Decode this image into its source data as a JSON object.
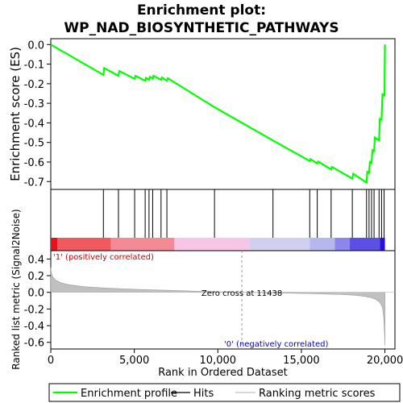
{
  "chart_data": {
    "type": "line",
    "title": "Enrichment plot:\nWP_NAD_BIOSYNTHETIC_PATHWAYS",
    "es_panel": {
      "ylabel": "Enrichment score (ES)",
      "ylim": [
        -0.74,
        0.03
      ],
      "yticks": [
        0.0,
        -0.1,
        -0.2,
        -0.3,
        -0.4,
        -0.5,
        -0.6,
        -0.7
      ],
      "ytick_labels": [
        "0.0",
        "-0.1",
        "-0.2",
        "-0.3",
        "-0.4",
        "-0.5",
        "-0.6",
        "-0.7"
      ],
      "curve_color": "#00ff00",
      "points": [
        [
          0,
          0.0
        ],
        [
          3150,
          -0.155
        ],
        [
          3200,
          -0.12
        ],
        [
          4050,
          -0.16
        ],
        [
          4100,
          -0.135
        ],
        [
          5020,
          -0.175
        ],
        [
          5070,
          -0.16
        ],
        [
          5650,
          -0.185
        ],
        [
          5700,
          -0.17
        ],
        [
          5880,
          -0.18
        ],
        [
          5930,
          -0.165
        ],
        [
          6100,
          -0.175
        ],
        [
          6150,
          -0.16
        ],
        [
          6600,
          -0.18
        ],
        [
          6650,
          -0.168
        ],
        [
          6950,
          -0.185
        ],
        [
          7000,
          -0.172
        ],
        [
          9800,
          -0.32
        ],
        [
          13300,
          -0.49
        ],
        [
          15500,
          -0.595
        ],
        [
          15550,
          -0.585
        ],
        [
          15950,
          -0.608
        ],
        [
          16000,
          -0.598
        ],
        [
          16780,
          -0.638
        ],
        [
          16830,
          -0.625
        ],
        [
          18050,
          -0.685
        ],
        [
          18100,
          -0.66
        ],
        [
          18900,
          -0.705
        ],
        [
          18950,
          -0.65
        ],
        [
          19050,
          -0.655
        ],
        [
          19100,
          -0.6
        ],
        [
          19200,
          -0.605
        ],
        [
          19250,
          -0.54
        ],
        [
          19350,
          -0.545
        ],
        [
          19400,
          -0.475
        ],
        [
          19650,
          -0.49
        ],
        [
          19700,
          -0.38
        ],
        [
          19800,
          -0.385
        ],
        [
          19850,
          -0.255
        ],
        [
          19980,
          -0.26
        ],
        [
          20000,
          0.0
        ]
      ]
    },
    "hits": [
      3150,
      4050,
      5020,
      5650,
      5880,
      6100,
      6600,
      6950,
      9800,
      13300,
      15500,
      15950,
      16780,
      18050,
      18900,
      19050,
      19200,
      19350,
      19650,
      19800,
      19950
    ],
    "rank_bar": {
      "segments": [
        {
          "from": 0,
          "to": 400,
          "color": "#e8101a"
        },
        {
          "from": 400,
          "to": 3600,
          "color": "#f05a5f"
        },
        {
          "from": 3600,
          "to": 7400,
          "color": "#f58a97"
        },
        {
          "from": 7400,
          "to": 11900,
          "color": "#f7c5e6"
        },
        {
          "from": 11900,
          "to": 15500,
          "color": "#d0cff0"
        },
        {
          "from": 15500,
          "to": 17000,
          "color": "#b8b6ee"
        },
        {
          "from": 17000,
          "to": 17900,
          "color": "#8c86ea"
        },
        {
          "from": 17900,
          "to": 19700,
          "color": "#5b4fe6"
        },
        {
          "from": 19700,
          "to": 20000,
          "color": "#2a0fd8"
        }
      ]
    },
    "metric_panel": {
      "ylabel": "Ranked list metric (Signal2Noise)",
      "ylim": [
        -0.68,
        0.5
      ],
      "yticks": [
        0.4,
        0.2,
        0.0,
        -0.2,
        -0.4,
        -0.6
      ],
      "ytick_labels": [
        "0.4",
        "0.2",
        "0.0",
        "-0.2",
        "-0.4",
        "-0.6"
      ],
      "positive_label": "'1' (positively correlated)",
      "negative_label": "'0' (negatively correlated)",
      "zero_cross_label": "Zero cross at 11438",
      "zero_cross": 11438,
      "fill_color": "#c0c0c0",
      "profile": [
        [
          0,
          0.3
        ],
        [
          20,
          0.25
        ],
        [
          100,
          0.19
        ],
        [
          300,
          0.145
        ],
        [
          600,
          0.115
        ],
        [
          1000,
          0.095
        ],
        [
          1500,
          0.08
        ],
        [
          2000,
          0.068
        ],
        [
          3000,
          0.055
        ],
        [
          4000,
          0.045
        ],
        [
          5000,
          0.037
        ],
        [
          6000,
          0.03
        ],
        [
          7000,
          0.024
        ],
        [
          8000,
          0.018
        ],
        [
          9000,
          0.012
        ],
        [
          10000,
          0.007
        ],
        [
          11000,
          0.002
        ],
        [
          11438,
          0.0
        ],
        [
          12500,
          -0.004
        ],
        [
          13500,
          -0.008
        ],
        [
          14500,
          -0.011
        ],
        [
          15500,
          -0.015
        ],
        [
          16500,
          -0.02
        ],
        [
          17500,
          -0.027
        ],
        [
          18200,
          -0.035
        ],
        [
          18800,
          -0.048
        ],
        [
          19200,
          -0.065
        ],
        [
          19500,
          -0.09
        ],
        [
          19700,
          -0.12
        ],
        [
          19850,
          -0.18
        ],
        [
          19930,
          -0.3
        ],
        [
          19970,
          -0.45
        ],
        [
          20000,
          -0.64
        ]
      ]
    },
    "x_axis": {
      "xlabel": "Rank in Ordered Dataset",
      "xlim": [
        0,
        20600
      ],
      "xticks": [
        0,
        5000,
        10000,
        15000,
        20000
      ],
      "xtick_labels": [
        "0",
        "5,000",
        "10,000",
        "15,000",
        "20,000"
      ]
    },
    "legend": {
      "placement": "bottom",
      "items": [
        {
          "label": "Enrichment profile",
          "color": "#00ff00"
        },
        {
          "label": "Hits",
          "color": "#000000"
        },
        {
          "label": "Ranking metric scores",
          "color": "#c0c0c0"
        }
      ]
    }
  }
}
